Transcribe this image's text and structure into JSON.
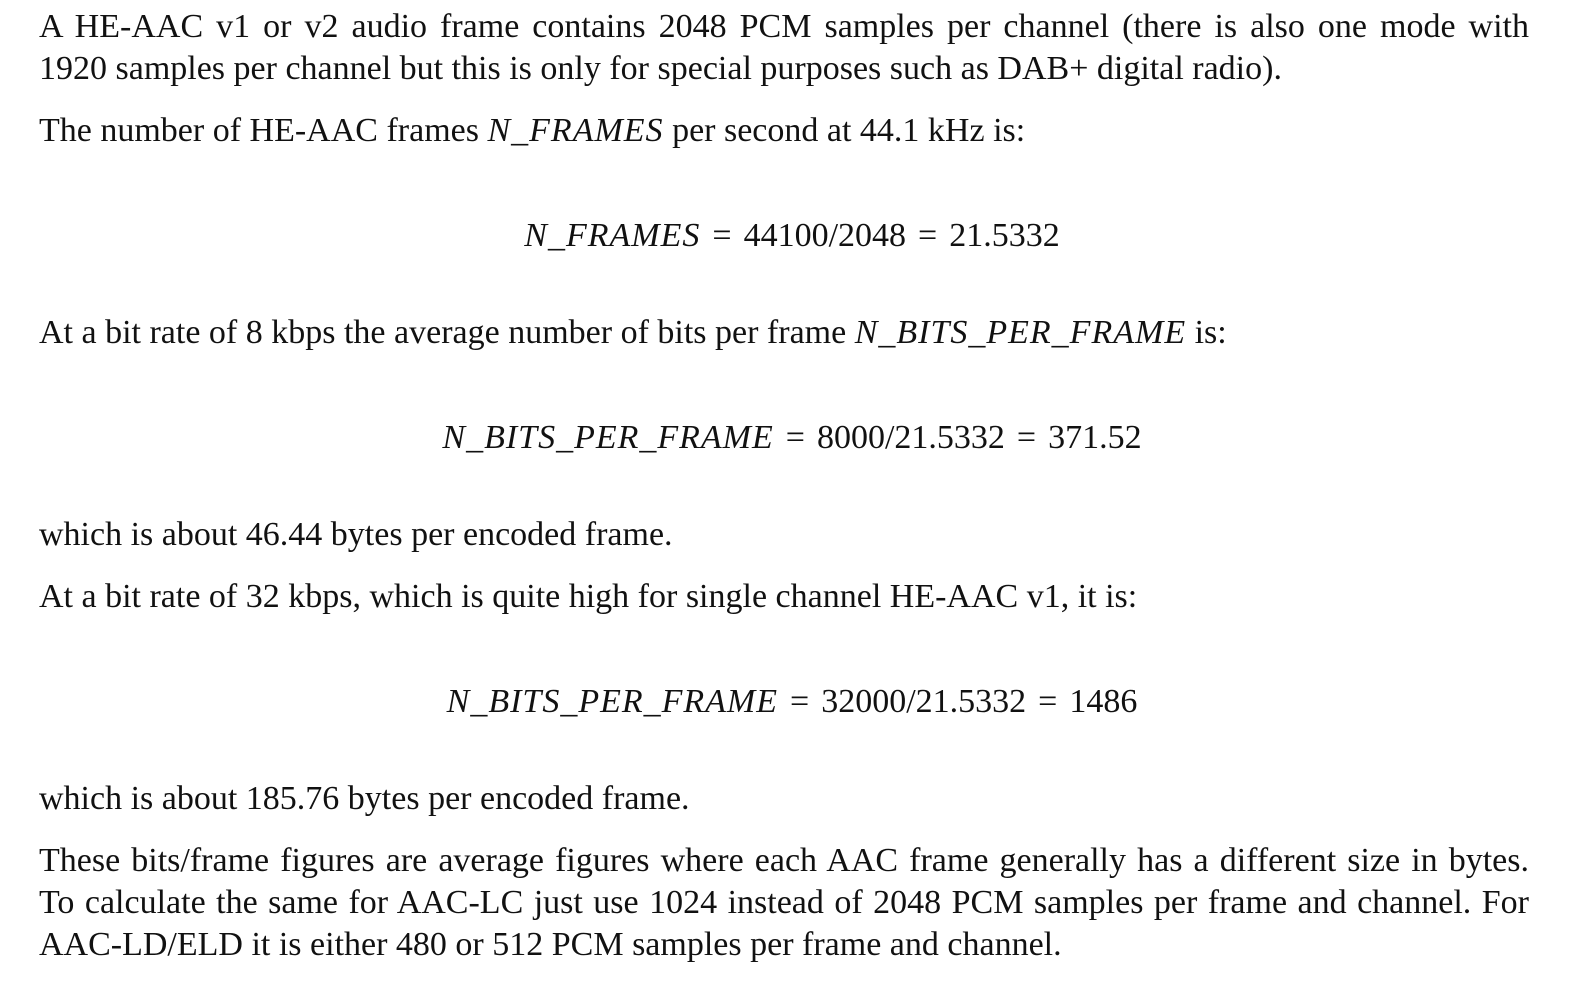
{
  "paragraphs": {
    "p1": {
      "line1": "A HE-AAC v1 or v2 audio frame contains 2048 PCM samples per channel (there is also one mode with",
      "line2": "1920 samples per channel but this is only for special purposes such as DAB+ digital radio)."
    },
    "p2": {
      "before": "The number of HE-AAC frames ",
      "var": "N_FRAMES",
      "after": " per second at 44.1 kHz is:"
    },
    "p3": {
      "before": "At a bit rate of 8 kbps the average number of bits per frame ",
      "var": "N_BITS_PER_FRAME",
      "after": " is:"
    },
    "p4": "which is about 46.44 bytes per encoded frame.",
    "p5": "At a bit rate of 32 kbps, which is quite high for single channel HE-AAC v1, it is:",
    "p6": "which is about 185.76 bytes per encoded frame.",
    "p7": {
      "line1": "These bits/frame figures are average figures where each AAC frame generally has a different size in bytes.",
      "line2": "To calculate the same for AAC-LC just use 1024 instead of 2048 PCM samples per frame and channel. For",
      "line3": "AAC-LD/ELD it is either 480 or 512 PCM samples per frame and channel."
    }
  },
  "equations": {
    "eq1": {
      "lhs": "N_FRAMES",
      "op1": "=",
      "expr": "44100/2048",
      "op2": "=",
      "result": "21.5332"
    },
    "eq2": {
      "lhs": "N_BITS_PER_FRAME",
      "op1": "=",
      "expr": "8000/21.5332",
      "op2": "=",
      "result": "371.52"
    },
    "eq3": {
      "lhs": "N_BITS_PER_FRAME",
      "op1": "=",
      "expr": "32000/21.5332",
      "op2": "=",
      "result": "1486"
    }
  }
}
